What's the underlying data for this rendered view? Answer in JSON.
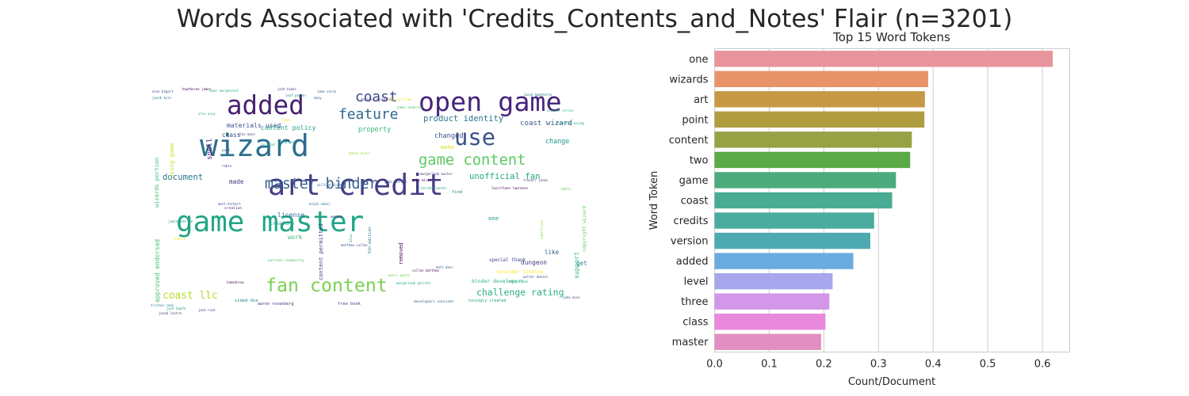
{
  "suptitle": "Words Associated with 'Credits_Contents_and_Notes' Flair (n=3201)",
  "wordcloud": {
    "words": [
      {
        "text": "art credit",
        "color": "#433e85"
      },
      {
        "text": "game master",
        "color": "#21a585"
      },
      {
        "text": "wizard",
        "color": "#2c6e8e"
      },
      {
        "text": "open game",
        "color": "#46247a"
      },
      {
        "text": "added",
        "color": "#481f70"
      },
      {
        "text": "fan content",
        "color": "#7ad151"
      },
      {
        "text": "use",
        "color": "#3b528b"
      },
      {
        "text": "game content",
        "color": "#5ec962"
      },
      {
        "text": "master binder",
        "color": "#355f8d"
      },
      {
        "text": "coast",
        "color": "#3e4989"
      },
      {
        "text": "feature",
        "color": "#31688e"
      },
      {
        "text": "challenge rating",
        "color": "#29af7f"
      },
      {
        "text": "coast llc",
        "color": "#b5de2b"
      },
      {
        "text": "document",
        "color": "#2a788e"
      },
      {
        "text": "unofficial fan",
        "color": "#22a884"
      },
      {
        "text": "product identity",
        "color": "#2a768e"
      },
      {
        "text": "coast wizard",
        "color": "#38598c"
      },
      {
        "text": "materials used",
        "color": "#3d4d8a"
      },
      {
        "text": "content policy",
        "color": "#1f9e89"
      },
      {
        "text": "property",
        "color": "#35b779"
      },
      {
        "text": "class",
        "color": "#3c4f8a"
      },
      {
        "text": "spell",
        "color": "#482173"
      },
      {
        "text": "changed",
        "color": "#3b528b"
      },
      {
        "text": "change",
        "color": "#1f9a8a"
      },
      {
        "text": "made",
        "color": "#453781"
      },
      {
        "text": "license",
        "color": "#2d708e"
      },
      {
        "text": "like",
        "color": "#355e8d"
      },
      {
        "text": "dungeon",
        "color": "#443a83"
      },
      {
        "text": "get",
        "color": "#26828e"
      },
      {
        "text": "one",
        "color": "#1f958b"
      },
      {
        "text": "work",
        "color": "#3aba76"
      },
      {
        "text": "make",
        "color": "#d8e219"
      },
      {
        "text": "creature",
        "color": "#22a785"
      },
      {
        "text": "find",
        "color": "#238a8d"
      },
      {
        "text": "creation",
        "color": "#482475"
      },
      {
        "text": "binder developers",
        "color": "#2eb37c"
      },
      {
        "text": "consider joining",
        "color": "#fde725"
      },
      {
        "text": "special thank",
        "color": "#3f4788"
      },
      {
        "text": "free book",
        "color": "#404688"
      },
      {
        "text": "aaron rosenberg",
        "color": "#46307e"
      },
      {
        "text": "lovingly created",
        "color": "#1f9e89"
      },
      {
        "text": "developers consider",
        "color": "#31688e"
      },
      {
        "text": "sided die",
        "color": "#25838e"
      },
      {
        "text": "homebrew",
        "color": "#471063"
      },
      {
        "text": "patreon community",
        "color": "#52c569"
      },
      {
        "text": "instead",
        "color": "#2db27d"
      },
      {
        "text": "weapon",
        "color": "#482677"
      },
      {
        "text": "part",
        "color": "#3b528b"
      },
      {
        "text": "table",
        "color": "#6ccd5a"
      },
      {
        "text": "many",
        "color": "#32648e"
      },
      {
        "text": "created using",
        "color": "#1fa088"
      },
      {
        "text": "wizards portion",
        "color": "#3dbc74"
      },
      {
        "text": "using game",
        "color": "#c2df23"
      },
      {
        "text": "approved endorsed",
        "color": "#42be71"
      },
      {
        "text": "content permitted",
        "color": "#3e4a89"
      },
      {
        "text": "removed",
        "color": "#46085c"
      },
      {
        "text": "support",
        "color": "#35b779"
      },
      {
        "text": "copyright wizard",
        "color": "#67cc5c"
      },
      {
        "text": "5th edition",
        "color": "#2a778e"
      },
      {
        "text": "also",
        "color": "#20928c"
      },
      {
        "text": "unofficial",
        "color": "#90d743"
      }
    ]
  },
  "chart_data": {
    "type": "bar",
    "orientation": "horizontal",
    "title": "Top 15 Word Tokens",
    "xlabel": "Count/Document",
    "ylabel": "Word Token",
    "categories": [
      "one",
      "wizards",
      "art",
      "point",
      "content",
      "two",
      "game",
      "coast",
      "credits",
      "version",
      "added",
      "level",
      "three",
      "class",
      "master"
    ],
    "values": [
      0.619,
      0.391,
      0.385,
      0.384,
      0.361,
      0.358,
      0.332,
      0.325,
      0.292,
      0.285,
      0.254,
      0.216,
      0.21,
      0.203,
      0.195
    ],
    "colors": [
      "#e8949d",
      "#e8936a",
      "#c79945",
      "#b09d3f",
      "#96a244",
      "#5aaa45",
      "#4bab7c",
      "#49ab91",
      "#4aac9d",
      "#4caab0",
      "#6aacdf",
      "#a8a6ed",
      "#d297e8",
      "#e889dd",
      "#e08fc0"
    ],
    "xticks": [
      0.0,
      0.1,
      0.2,
      0.3,
      0.4,
      0.5,
      0.6
    ],
    "xlim": [
      0,
      0.65
    ],
    "grid": "vertical"
  }
}
